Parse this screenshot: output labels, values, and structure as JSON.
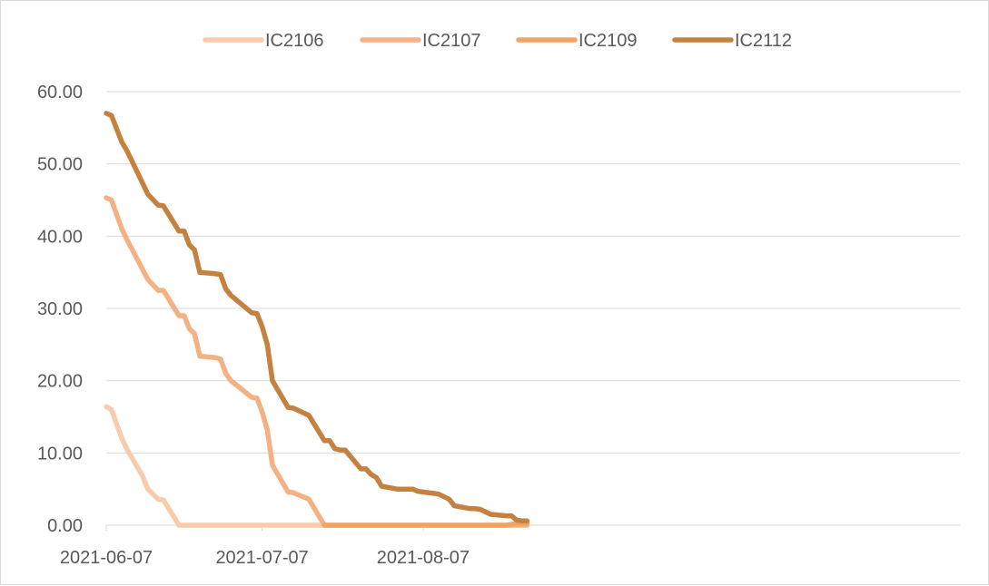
{
  "chart_data": {
    "type": "line",
    "title": "",
    "xlabel": "",
    "ylabel": "",
    "ylim": [
      0,
      60
    ],
    "y_ticks": [
      "0.00",
      "10.00",
      "20.00",
      "30.00",
      "40.00",
      "50.00",
      "60.00"
    ],
    "x_ticks": [
      "2021-06-07",
      "2021-07-07",
      "2021-08-07"
    ],
    "x_range": [
      "2021-06-07",
      "2021-08-27"
    ],
    "grid": true,
    "legend_position": "top",
    "series": [
      {
        "name": "IC2106",
        "color": "#f8cbad",
        "points": [
          [
            "2021-06-07",
            16.4
          ],
          [
            "2021-06-08",
            16.0
          ],
          [
            "2021-06-10",
            12.0
          ],
          [
            "2021-06-11",
            10.5
          ],
          [
            "2021-06-14",
            6.8
          ],
          [
            "2021-06-15",
            5.0
          ],
          [
            "2021-06-17",
            3.6
          ],
          [
            "2021-06-18",
            3.5
          ],
          [
            "2021-06-21",
            0.0
          ],
          [
            "2021-06-22",
            0.0
          ],
          [
            "2021-07-07",
            0.0
          ],
          [
            "2021-07-19",
            0.0
          ]
        ]
      },
      {
        "name": "IC2107",
        "color": "#f4b183",
        "points": [
          [
            "2021-06-07",
            45.3
          ],
          [
            "2021-06-08",
            45.0
          ],
          [
            "2021-06-10",
            41.0
          ],
          [
            "2021-06-11",
            39.5
          ],
          [
            "2021-06-15",
            34.0
          ],
          [
            "2021-06-17",
            32.5
          ],
          [
            "2021-06-18",
            32.5
          ],
          [
            "2021-06-21",
            29.0
          ],
          [
            "2021-06-22",
            29.0
          ],
          [
            "2021-06-23",
            27.2
          ],
          [
            "2021-06-24",
            26.5
          ],
          [
            "2021-06-25",
            23.4
          ],
          [
            "2021-06-28",
            23.2
          ],
          [
            "2021-06-29",
            23.0
          ],
          [
            "2021-06-30",
            21.0
          ],
          [
            "2021-07-01",
            20.0
          ],
          [
            "2021-07-05",
            17.7
          ],
          [
            "2021-07-06",
            17.6
          ],
          [
            "2021-07-07",
            15.7
          ],
          [
            "2021-07-08",
            13.2
          ],
          [
            "2021-07-09",
            8.3
          ],
          [
            "2021-07-12",
            4.6
          ],
          [
            "2021-07-13",
            4.5
          ],
          [
            "2021-07-16",
            3.6
          ],
          [
            "2021-07-19",
            0.0
          ],
          [
            "2021-08-27",
            0.0
          ]
        ]
      },
      {
        "name": "IC2109",
        "color": "#f0a464",
        "points": [
          [
            "2021-07-19",
            0.0
          ],
          [
            "2021-08-23",
            0.0
          ],
          [
            "2021-08-25",
            0.2
          ],
          [
            "2021-08-27",
            0.3
          ]
        ]
      },
      {
        "name": "IC2112",
        "color": "#c5813f",
        "points": [
          [
            "2021-06-07",
            57.0
          ],
          [
            "2021-06-08",
            56.7
          ],
          [
            "2021-06-10",
            53.0
          ],
          [
            "2021-06-11",
            51.8
          ],
          [
            "2021-06-15",
            45.8
          ],
          [
            "2021-06-17",
            44.3
          ],
          [
            "2021-06-18",
            44.2
          ],
          [
            "2021-06-21",
            40.7
          ],
          [
            "2021-06-22",
            40.7
          ],
          [
            "2021-06-23",
            38.8
          ],
          [
            "2021-06-24",
            38.1
          ],
          [
            "2021-06-25",
            35.0
          ],
          [
            "2021-06-28",
            34.8
          ],
          [
            "2021-06-29",
            34.7
          ],
          [
            "2021-06-30",
            32.7
          ],
          [
            "2021-07-01",
            31.8
          ],
          [
            "2021-07-05",
            29.4
          ],
          [
            "2021-07-06",
            29.3
          ],
          [
            "2021-07-07",
            27.5
          ],
          [
            "2021-07-08",
            25.0
          ],
          [
            "2021-07-09",
            20.0
          ],
          [
            "2021-07-12",
            16.3
          ],
          [
            "2021-07-13",
            16.2
          ],
          [
            "2021-07-16",
            15.2
          ],
          [
            "2021-07-19",
            11.7
          ],
          [
            "2021-07-20",
            11.7
          ],
          [
            "2021-07-21",
            10.6
          ],
          [
            "2021-07-22",
            10.4
          ],
          [
            "2021-07-23",
            10.4
          ],
          [
            "2021-07-26",
            7.8
          ],
          [
            "2021-07-27",
            7.8
          ],
          [
            "2021-07-28",
            7.0
          ],
          [
            "2021-07-29",
            6.6
          ],
          [
            "2021-07-30",
            5.4
          ],
          [
            "2021-08-02",
            5.0
          ],
          [
            "2021-08-05",
            5.0
          ],
          [
            "2021-08-06",
            4.7
          ],
          [
            "2021-08-09",
            4.4
          ],
          [
            "2021-08-10",
            4.3
          ],
          [
            "2021-08-12",
            3.6
          ],
          [
            "2021-08-13",
            2.7
          ],
          [
            "2021-08-16",
            2.3
          ],
          [
            "2021-08-17",
            2.3
          ],
          [
            "2021-08-18",
            2.2
          ],
          [
            "2021-08-20",
            1.5
          ],
          [
            "2021-08-23",
            1.3
          ],
          [
            "2021-08-24",
            1.3
          ],
          [
            "2021-08-25",
            0.7
          ],
          [
            "2021-08-26",
            0.6
          ],
          [
            "2021-08-27",
            0.6
          ]
        ]
      }
    ]
  }
}
